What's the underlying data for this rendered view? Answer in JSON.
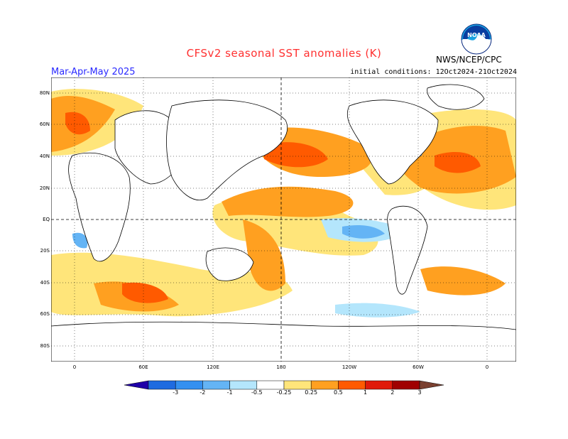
{
  "header": {
    "title": "CFSv2 seasonal SST anomalies (K)",
    "season": "Mar-Apr-May 2025",
    "initial_conditions": "initial conditions: 12Oct2024-21Oct2024",
    "agency": "NWS/NCEP/CPC",
    "logo_text": "NOAA"
  },
  "map": {
    "lat_labels": [
      "80N",
      "60N",
      "40N",
      "20N",
      "EQ",
      "20S",
      "40S",
      "60S",
      "80S"
    ],
    "lon_labels": [
      "0",
      "60E",
      "120E",
      "180",
      "120W",
      "60W",
      "0"
    ]
  },
  "colorbar": {
    "labels": [
      "-3",
      "-2",
      "-1",
      "-0.5",
      "-0.25",
      "0.25",
      "0.5",
      "1",
      "2",
      "3"
    ],
    "colors": [
      "#1f00a8",
      "#1f6be0",
      "#3490f0",
      "#64b4f5",
      "#b4e6fc",
      "#ffffff",
      "#ffe57a",
      "#ffa020",
      "#ff5a00",
      "#e01a0a",
      "#a00000",
      "#7a4030"
    ]
  },
  "colors": {
    "title": "#ff3030",
    "season": "#2a2aff",
    "ocean": "#ffffff",
    "land": "#ffffff"
  }
}
